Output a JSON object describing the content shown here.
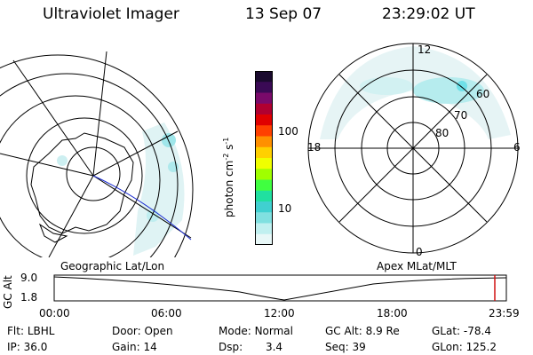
{
  "header": {
    "title": "Ultraviolet Imager",
    "date": "13 Sep 07",
    "time": "23:29:02 UT"
  },
  "left_map": {
    "label": "Geographic Lat/Lon"
  },
  "right_map": {
    "label": "Apex MLat/MLT",
    "mlt_labels": {
      "top": "12",
      "left": "18",
      "right": "6",
      "bottom": "0"
    },
    "lat_labels": [
      "60",
      "70",
      "80"
    ]
  },
  "colorbar": {
    "unit": "photon cm",
    "unit_sup1": "-2",
    "unit_mid": "s",
    "unit_sup2": "-1",
    "ticks": [
      "100",
      "10"
    ],
    "colors": [
      "#1a0a2e",
      "#3a0a55",
      "#7a0a6a",
      "#b00030",
      "#e00000",
      "#ff4000",
      "#ff9000",
      "#ffd000",
      "#f0ff00",
      "#a0ff00",
      "#40ff40",
      "#20e0a0",
      "#40d0d0",
      "#80e0e0",
      "#c0f0f0",
      "#e8f8f8"
    ]
  },
  "timeline": {
    "axis_label": "GC Alt",
    "y_ticks": [
      "9.0",
      "1.8"
    ],
    "x_ticks": [
      "00:00",
      "06:00",
      "12:00",
      "18:00",
      "23:59"
    ]
  },
  "info": {
    "row1": [
      {
        "label": "Flt:",
        "value": "LBHL"
      },
      {
        "label": "Door:",
        "value": "Open"
      },
      {
        "label": "Mode:",
        "value": "Normal"
      },
      {
        "label": "GC Alt:",
        "value": "8.9 Re"
      },
      {
        "label": "GLat:",
        "value": "-78.4"
      }
    ],
    "row2": [
      {
        "label": "IP:",
        "value": "36.0"
      },
      {
        "label": "Gain:",
        "value": "14"
      },
      {
        "label": "Dsp:",
        "value": "3.4"
      },
      {
        "label": "Seq:",
        "value": "39"
      },
      {
        "label": "GLon:",
        "value": "125.2"
      }
    ]
  }
}
